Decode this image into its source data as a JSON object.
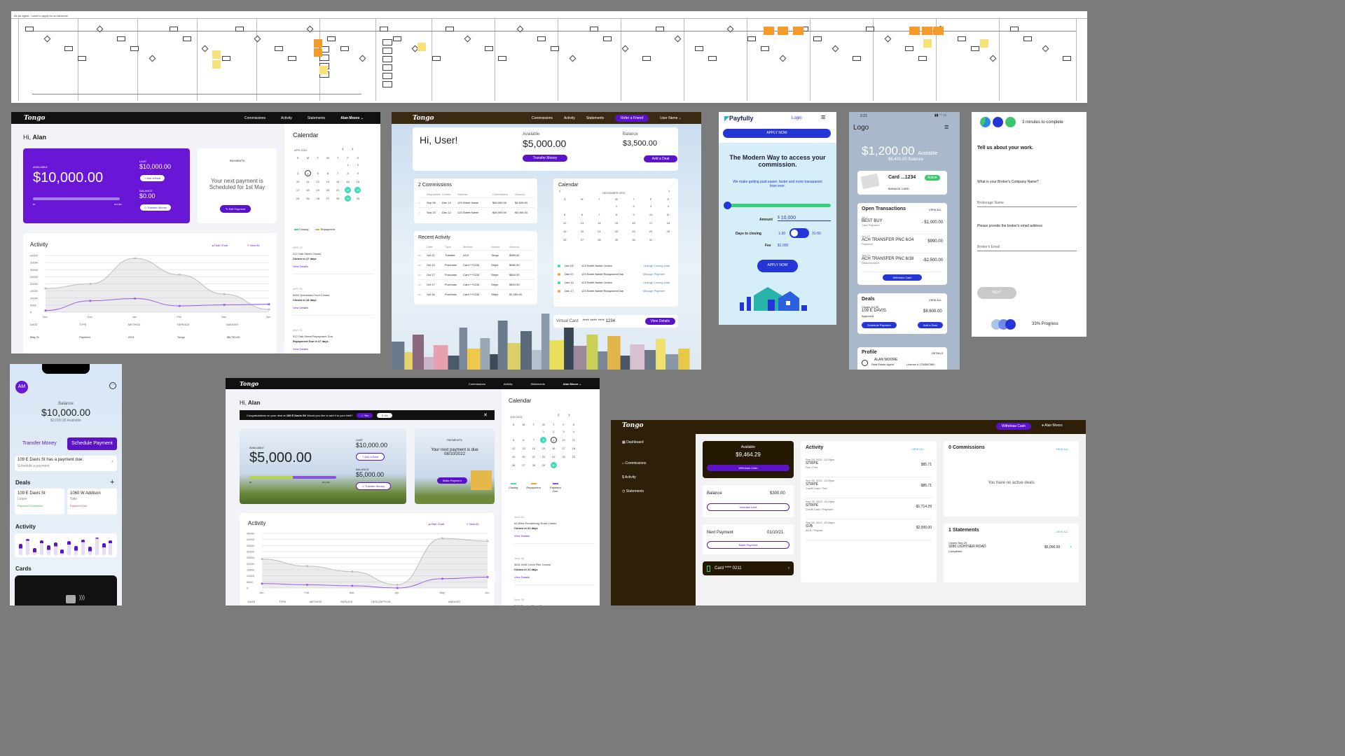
{
  "flowchart": {
    "title": "As an agent, I want to apply for an advance"
  },
  "p1": {
    "logo": "Tongo",
    "nav": [
      "Commissions",
      "Activity",
      "Statements",
      "Alan Moore ⌄"
    ],
    "greeting_prefix": "Hi, ",
    "greeting_name": "Alan",
    "available_label": "AVAILABLE",
    "available_amount": "$10,000.00",
    "limit_label": "LIMIT",
    "limit_amount": "$10,000.00",
    "add_deal": "+ Add a Deal",
    "balance_label": "BALANCE",
    "balance_amount": "$0.00",
    "transfer": "◇ Transfer Money",
    "bar_left": "$0",
    "bar_right": "$10,000",
    "payments_label": "PAYMENTS",
    "payment_text": "Your next payment is Scheduled for 1st May",
    "edit_payment": "✎ Edit Payment",
    "activity_title": "Activity",
    "hide_chart": "▴ Hide Chart",
    "view_all": "≡ View All",
    "yticks": [
      "40000",
      "35000",
      "30000",
      "25000",
      "20000",
      "15000",
      "10000",
      "5000",
      "0"
    ],
    "xticks": [
      "Nov",
      "Dec",
      "Jan",
      "Feb",
      "Mar",
      "Apr"
    ],
    "table_headers": [
      "DATE",
      "TYPE",
      "METHOD",
      "SERVICE",
      "AMOUNT"
    ],
    "table_row": [
      "May 01",
      "Payment",
      "ACH",
      "Tongo",
      "-$5,750.00"
    ],
    "calendar_title": "Calendar",
    "month": "APR 2022",
    "legend": [
      "Closing",
      "Repayment"
    ],
    "events": [
      {
        "date": "APR 22",
        "title": "912 Oak Street Closes",
        "sub": "Closes in 17 days",
        "link": "View Details"
      },
      {
        "date": "APR 30",
        "title": "6484 Quintessa Court Closes",
        "sub": "Closes in 18 days",
        "link": "View Details"
      },
      {
        "date": "MAY 01",
        "title": "912 Oak Street Repayment Due",
        "sub": "Repayment Due in 27 days",
        "link": "View Details"
      }
    ]
  },
  "p2": {
    "logo": "Tongo",
    "nav": [
      "Commissions",
      "Activity",
      "Statements"
    ],
    "refer": "Refer a Friend",
    "user": "User Name ⌄",
    "greeting": "Hi, User!",
    "available_label": "Available",
    "available": "$5,000.00",
    "transfer": "Transfer Money",
    "balance_label": "Balance",
    "balance": "$3,500.00",
    "add_deal": "Add a Deal",
    "commissions_title": "2 Commissions",
    "comm_headers": [
      "Requested",
      "Closes",
      "Address",
      "Commission",
      "Amount"
    ],
    "comm_rows": [
      [
        "Sep 28",
        "Dec 12",
        "123 Street Name",
        "$60,000.00",
        "$4,500.00"
      ],
      [
        "Sep 23",
        "Dec 12",
        "123 Street Name",
        "$45,000.00",
        "$4,000.00"
      ]
    ],
    "recent_title": "Recent Activity",
    "recent_headers": [
      "Date",
      "Type",
      "Method",
      "Vendor",
      "Amount"
    ],
    "recent_rows": [
      [
        "Oct 21",
        "Transfer",
        "ACH",
        "Tongo",
        "$350.00"
      ],
      [
        "Oct 19",
        "Purchase",
        "Card ***1234",
        "Stripe",
        "$950.00"
      ],
      [
        "Oct 17",
        "Purchase",
        "Card ***1234",
        "Stripe",
        "$500.00"
      ],
      [
        "Oct 17",
        "Purchase",
        "Card ***1234",
        "Stripe",
        "$400.00"
      ],
      [
        "Oct 16",
        "Purchase",
        "Card ***1234",
        "Stripe",
        "$1,300.00"
      ]
    ],
    "calendar_title": "Calendar",
    "month": "DECEMBER 2021",
    "events": [
      [
        "Dec 02",
        "123 Street Name Closes",
        "Change Closing Date"
      ],
      [
        "Dec 07",
        "123 Street Name Repayment Due",
        "Manage Payment"
      ],
      [
        "Dec 12",
        "123 Street Name Closes",
        "Change Closing Date"
      ],
      [
        "Dec 17",
        "123 Street Name Repayment Due",
        "Manage Payment"
      ]
    ],
    "virtual_card": "Virtual Card",
    "card_number": "**** **** **** 1234",
    "view_details": "View Details"
  },
  "p3": {
    "brand": "Payfully",
    "login": "Login",
    "apply": "APPLY NOW",
    "headline": "The Modern Way to access your commission.",
    "sub": "We make getting paid easier, faster and more transparent than ever.",
    "amount_label": "Amount",
    "amount": "10,000",
    "currency": "$",
    "days_label": "Days to closing",
    "days_a": "1-30",
    "days_b": "31-60",
    "fee_label": "Fee",
    "fee": "$1,000",
    "apply2": "APPLY NOW"
  },
  "p4": {
    "time": "2:21",
    "logo": "Logo",
    "balance": "$1,200.00",
    "available": "Available",
    "balance_sub": "$6,400.00 Balance",
    "card": "Card ...1234",
    "active": "Active",
    "manage": "MANAGE CARD",
    "open_title": "Open Transactions",
    "view_all": "VIEW ALL",
    "transactions": [
      {
        "date": "Jul 1",
        "name": "BEST BUY",
        "type": "Card Payment",
        "amount": "- $1,000.00"
      },
      {
        "date": "Jun 27",
        "name": "ACH TRANSFER PNC 6/24",
        "type": "Payment",
        "amount": "$990.00"
      },
      {
        "date": "Jun 24",
        "name": "ACH TRANSFER PNC 6/18",
        "type": "Disbursement",
        "amount": "-$2,500.00"
      }
    ],
    "withdraw": "Withdraw Cash",
    "deals_title": "Deals",
    "deal_close": "Closes Jul 30",
    "deal_name": "109 E DAVIS",
    "deal_status": "Approved",
    "deal_amount": "$8,600.00",
    "schedule": "Schedule Payment",
    "add_deal": "Add a Deal",
    "profile_title": "Profile",
    "details": "DETAILS",
    "profile_name": "ALAN MOORE",
    "profile_role": "Real Estate Agent",
    "license": "License # 1234567890"
  },
  "p5": {
    "time_text": "3 minutes to complete",
    "heading": "Tell us about your work.",
    "q1": "What is your Broker's Company Name?",
    "ph1": "Brokerage Name",
    "q2": "Please provide the broker's email address",
    "ph2": "Broker's Email",
    "next": "NEXT",
    "progress": "33% Progress"
  },
  "p6": {
    "avatar": "AM",
    "balance_label": "Balance",
    "balance": "$10,000.00",
    "available": "$2,000.00 Available",
    "transfer": "Transfer Money",
    "schedule": "Schedule Payment",
    "alert_title": "109 E Davis St has a payment due.",
    "alert_sub": "Schedule a payment",
    "deals_title": "Deals",
    "deals": [
      {
        "name": "109 E Davis St",
        "type": "Lease",
        "status": "Payment Scheduled"
      },
      {
        "name": "1060 W Addison",
        "type": "Sale",
        "status": "Payment Due"
      }
    ],
    "activity_title": "Activity",
    "bar_values": [
      0.6,
      0.9,
      0.4,
      0.8,
      0.55,
      0.7,
      0.3,
      0.75,
      0.5,
      0.85,
      0.45,
      0.95,
      0.65,
      0.8
    ],
    "cards_title": "Cards"
  },
  "p7": {
    "logo": "Tongo",
    "nav": [
      "Commissions",
      "Activity",
      "Statements",
      "Alan Moore ⌄"
    ],
    "greeting_prefix": "Hi, ",
    "greeting_name": "Alan",
    "banner_pre": "Congratulations on your deal at ",
    "banner_bold": "109 E Davis St",
    "banner_post": "! Would you like to add it to your limit?",
    "yes": "✓ Yes",
    "no": "✕ No",
    "available_label": "AVAILABLE",
    "available": "$5,000.00",
    "limit_label": "LIMIT",
    "limit": "$10,000.00",
    "add_deal": "+ Add a Deal",
    "balance_label": "BALANCE",
    "balance": "$5,000.00",
    "transfer": "◇ Transfer Money",
    "bar_left": "$0",
    "bar_right": "$10,000",
    "progress": 0.5,
    "payments_label": "PAYMENTS",
    "payment_text": "Your next payment is due 08/10/2022",
    "make_payment": "Make Payment",
    "activity_title": "Activity",
    "hide_chart": "▴ Hide Chart",
    "view_all": "≡ View All",
    "yticks": [
      "45000",
      "40000",
      "35000",
      "30000",
      "25000",
      "20000",
      "15000",
      "10000",
      "5000",
      "0"
    ],
    "xticks": [
      "Jan",
      "Feb",
      "Mar",
      "Apr",
      "May",
      "Jun"
    ],
    "table_headers": [
      "DATE",
      "TYPE",
      "METHOD",
      "SERVICE",
      "DESCRIPTION",
      "AMOUNT"
    ],
    "calendar_title": "Calendar",
    "month": "JUN 2022",
    "legend": [
      "Closing",
      "Repayment",
      "Payment Due"
    ],
    "events": [
      {
        "date": "June 10",
        "title": "63 West Funderburg Road Closes",
        "sub": "Closes in 21 days",
        "link": "View Details"
      },
      {
        "date": "June 16",
        "title": "5831 Wolf Creek Pike Closes",
        "sub": "Closes in 21 days",
        "link": "View Details"
      },
      {
        "date": "June 20",
        "title": "7968 Parsley Place Closes",
        "sub": "Closes in 21 days"
      }
    ]
  },
  "p8": {
    "logo": "Tongo",
    "withdraw": "Withdraw Cash",
    "user": "Alan Moore",
    "side": [
      "Dashboard",
      "Commissions",
      "Activity",
      "Statements"
    ],
    "available_label": "Available",
    "available": "$9,464.29",
    "withdraw_btn": "Withdraw Cash",
    "balance_label": "Balance",
    "balance": "$300.00",
    "increase": "Increase Limit",
    "next_label": "Next Payment",
    "next_date": "01/10/21",
    "make_payment": "Make Payment",
    "card": "Card **** 0211",
    "activity_title": "Activity",
    "view_all": "VIEW ALL",
    "activity": [
      {
        "date": "Sep 28, 2021, 11:09pm",
        "name": "STRIPE",
        "sub": "Fee / Fee",
        "amount": "$85.71"
      },
      {
        "date": "Sep 28, 2021, 11:09pm",
        "name": "STRIPE",
        "sub": "Credit Card / Fee",
        "amount": "-$85.71"
      },
      {
        "date": "Sep 28, 2021, 11:09pm",
        "name": "STRIPE",
        "sub": "Credit Card / Payment",
        "amount": "-$1,714.29"
      },
      {
        "date": "Sep 28, 2021, 12:09pm",
        "name": "SVB",
        "sub": "ACH / Payout",
        "amount": "$2,000.00"
      }
    ],
    "commissions_title": "0 Commissions",
    "no_deals": "You have no active deals",
    "statements_title": "1 Statements",
    "stmt_date": "Closed Sep 29",
    "stmt_addr": "3280 LIGHTNER ROAD",
    "stmt_status": "Completed",
    "stmt_amount": "$5,000.00"
  }
}
